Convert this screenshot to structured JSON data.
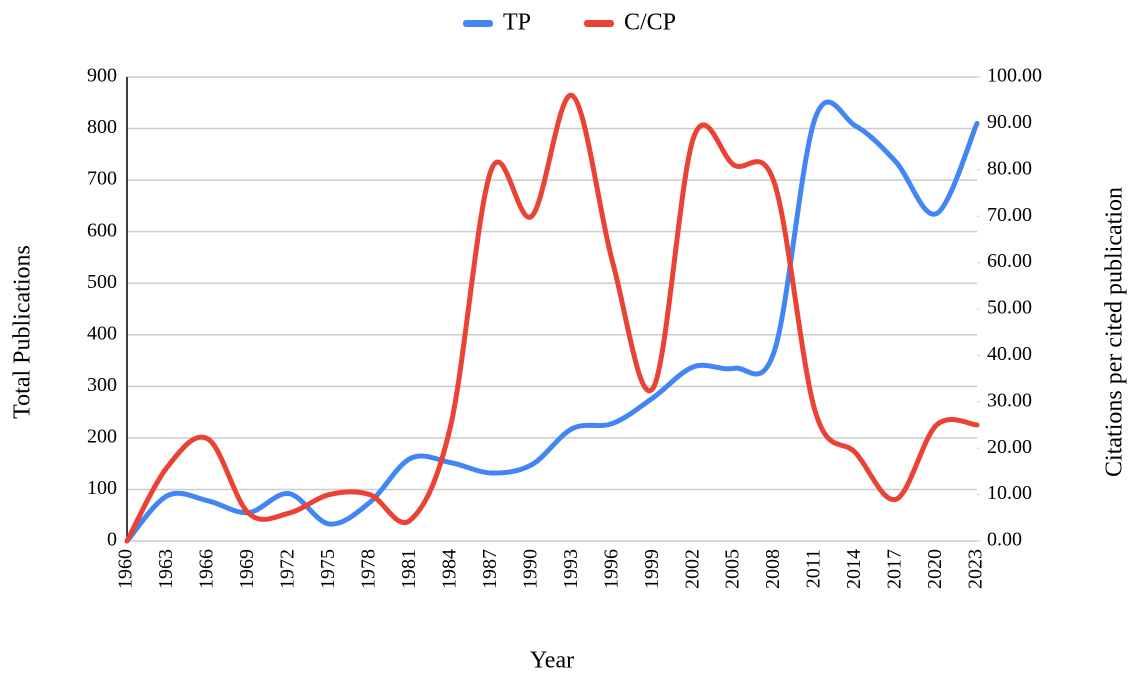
{
  "chart_data": {
    "type": "line",
    "x": [
      1960,
      1963,
      1966,
      1969,
      1972,
      1975,
      1978,
      1981,
      1984,
      1987,
      1990,
      1993,
      1996,
      1999,
      2002,
      2005,
      2008,
      2011,
      2014,
      2017,
      2020,
      2023
    ],
    "xlabel": "Year",
    "ylabel": "Total Publications",
    "y2label": "Citations per cited publication",
    "xlim": [
      1960,
      2023
    ],
    "ylim": [
      0,
      900
    ],
    "yticks": [
      0,
      100,
      200,
      300,
      400,
      500,
      600,
      700,
      800,
      900
    ],
    "y2lim": [
      0,
      100
    ],
    "y2ticks": [
      {
        "value": 0,
        "label": "0.00"
      },
      {
        "value": 10,
        "label": "10.00"
      },
      {
        "value": 20,
        "label": "20.00"
      },
      {
        "value": 30,
        "label": "30.00"
      },
      {
        "value": 40,
        "label": "40.00"
      },
      {
        "value": 50,
        "label": "50.00"
      },
      {
        "value": 60,
        "label": "60.00"
      },
      {
        "value": 70,
        "label": "70.00"
      },
      {
        "value": 80,
        "label": "80.00"
      },
      {
        "value": 90,
        "label": "90.00"
      },
      {
        "value": 100,
        "label": "100.00"
      }
    ],
    "grid": true,
    "legend": "top",
    "series": [
      {
        "name": "TP",
        "color": "#4285f4",
        "values": [
          0,
          88,
          78,
          55,
          92,
          33,
          75,
          160,
          152,
          132,
          148,
          218,
          228,
          278,
          338,
          335,
          370,
          820,
          805,
          735,
          635,
          810
        ]
      },
      {
        "name": "C/CP",
        "color": "#ea4335",
        "axis": "y2",
        "values": [
          0,
          16,
          22,
          6,
          6,
          10,
          10,
          4.5,
          25,
          80,
          70,
          96,
          60,
          33,
          87,
          81,
          77,
          28,
          19,
          9,
          25,
          25
        ]
      }
    ]
  }
}
